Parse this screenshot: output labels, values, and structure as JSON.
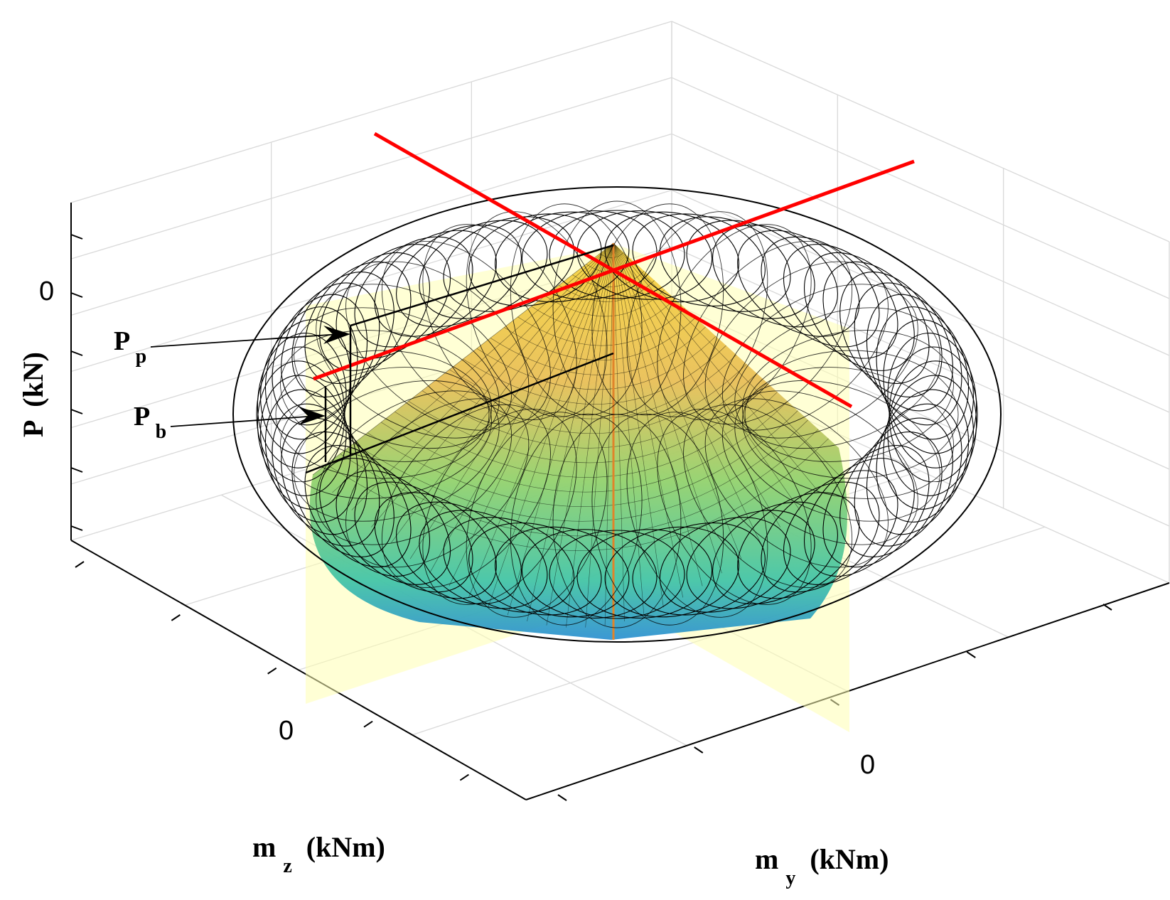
{
  "chart_data": {
    "type": "surface3d",
    "title": "",
    "axes": {
      "x": {
        "label_main": "m",
        "label_sub": "y",
        "label_unit": "(kNm)",
        "ticks": [
          "0"
        ]
      },
      "y": {
        "label_main": "m",
        "label_sub": "z",
        "label_unit": "(kNm)",
        "ticks": [
          "0"
        ]
      },
      "z": {
        "label_main": "P",
        "label_unit": "(kN)",
        "ticks": [
          "0"
        ]
      }
    },
    "grid": true,
    "series": [
      {
        "kind": "wireframe",
        "surface": "ellipsoid",
        "color": "#000000"
      },
      {
        "kind": "filled-surface",
        "surface": "pyramid",
        "colormap": "parula"
      },
      {
        "kind": "planes",
        "color": "#ffffb3"
      },
      {
        "kind": "lines",
        "color": "#ff0000"
      }
    ],
    "annotations": [
      {
        "main": "P",
        "sub": "p"
      },
      {
        "main": "P",
        "sub": "b"
      }
    ]
  },
  "colors": {
    "wire": "#000000",
    "grid": "#d9d9d9",
    "plane": "#ffffb3",
    "red": "#ff0000",
    "surface_top": "#f7d43a",
    "surface_mid": "#7fcf7a",
    "surface_bottom": "#2a8fd0"
  }
}
